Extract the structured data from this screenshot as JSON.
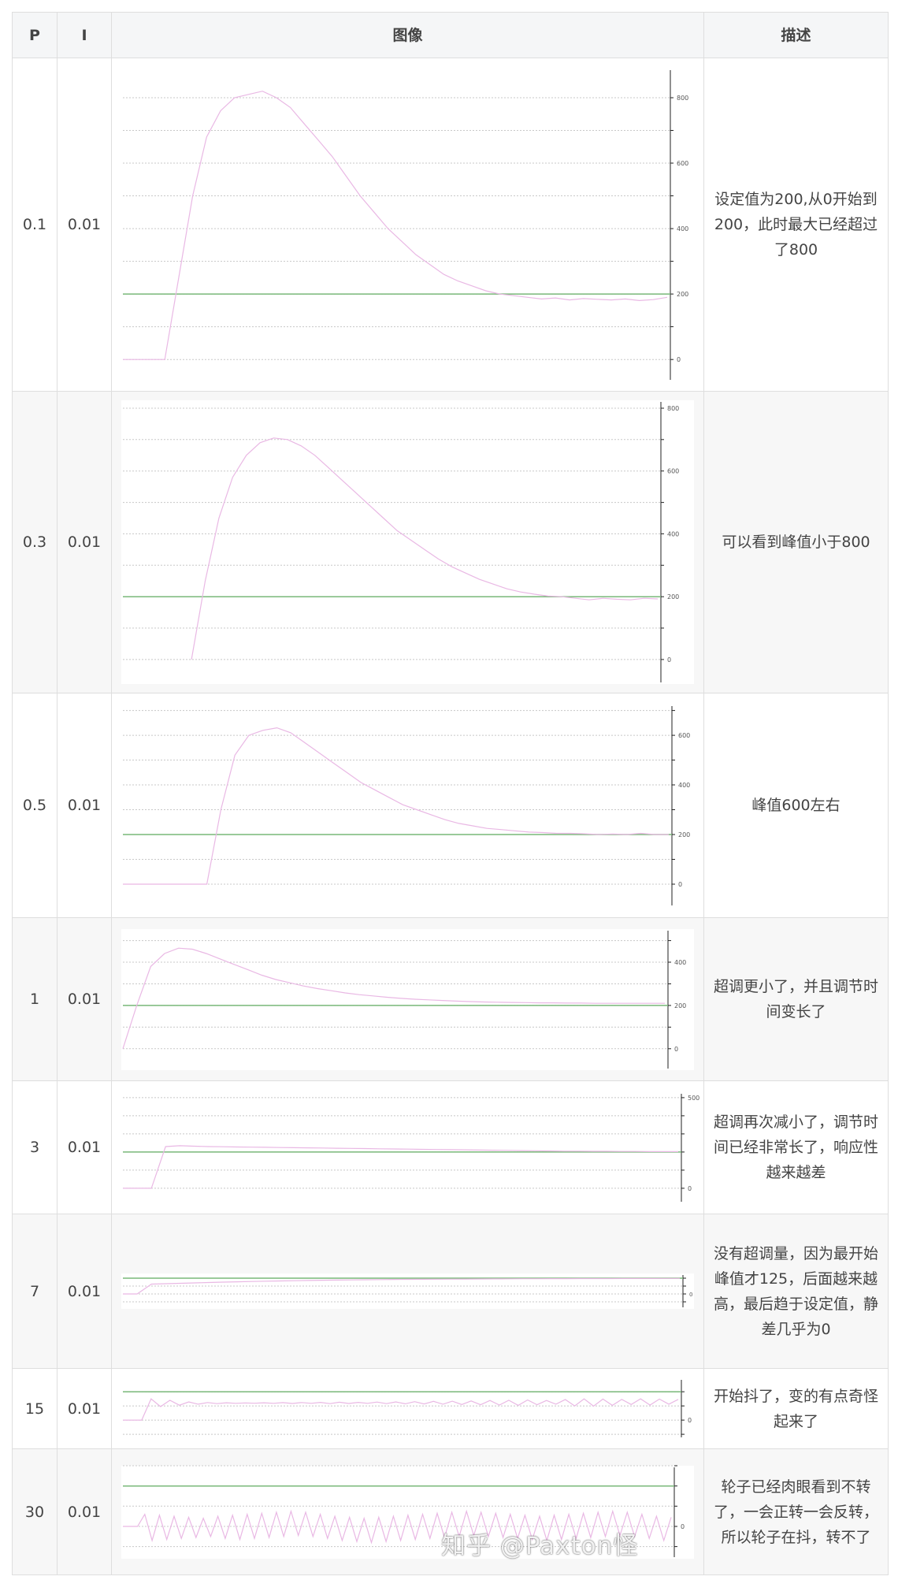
{
  "table": {
    "headers": [
      "P",
      "I",
      "图像",
      "描述"
    ],
    "rows": [
      {
        "p": "0.1",
        "i": "0.01",
        "desc": "设定值为200,从0开始到200，此时最大已经超过了800"
      },
      {
        "p": "0.3",
        "i": "0.01",
        "desc": "可以看到峰值小于800"
      },
      {
        "p": "0.5",
        "i": "0.01",
        "desc": "峰值600左右"
      },
      {
        "p": "1",
        "i": "0.01",
        "desc": "超调更小了，并且调节时间变长了"
      },
      {
        "p": "3",
        "i": "0.01",
        "desc": "超调再次减小了，调节时间已经非常长了，响应性越来越差"
      },
      {
        "p": "7",
        "i": "0.01",
        "desc": "没有超调量，因为最开始峰值才125，后面越来越高，最后趋于设定值，静差几乎为0"
      },
      {
        "p": "15",
        "i": "0.01",
        "desc": "开始抖了，变的有点奇怪起来了"
      },
      {
        "p": "30",
        "i": "0.01",
        "desc": "轮子已经肉眼看到不转了，一会正转一会反转，所以轮子在抖，转不了"
      }
    ]
  },
  "watermark": "知乎 @Paxton怪",
  "colors": {
    "response": "#e9b8e4",
    "setpoint": "#79b879",
    "grid": "#c8c8c8",
    "axis": "#222222",
    "header_bg": "#f5f6f7",
    "alt_row_bg": "#f7f7f7"
  },
  "chart_data": [
    {
      "type": "line",
      "ylim": [
        -67,
        889
      ],
      "ticks": [
        "0",
        "200",
        "400",
        "600",
        "800"
      ],
      "minor_step": 100,
      "setpoint": 200,
      "values": [
        0,
        0,
        0,
        0,
        250,
        500,
        680,
        760,
        800,
        810,
        820,
        800,
        770,
        720,
        670,
        620,
        560,
        500,
        450,
        400,
        360,
        320,
        290,
        260,
        240,
        225,
        210,
        200,
        195,
        190,
        185,
        188,
        182,
        186,
        184,
        182,
        185,
        180,
        183,
        190
      ]
    },
    {
      "type": "line",
      "ylim": [
        -78,
        825
      ],
      "ticks": [
        "0",
        "200",
        "400",
        "600",
        "800"
      ],
      "minor_step": 100,
      "setpoint": 200,
      "values": [
        null,
        null,
        null,
        null,
        null,
        0,
        250,
        450,
        580,
        650,
        690,
        705,
        700,
        680,
        650,
        610,
        570,
        530,
        490,
        450,
        410,
        380,
        350,
        320,
        295,
        275,
        255,
        240,
        225,
        215,
        208,
        202,
        200,
        195,
        190,
        195,
        192,
        190,
        195,
        193
      ]
    },
    {
      "type": "line",
      "ylim": [
        -92,
        724
      ],
      "ticks": [
        "0",
        "200",
        "400",
        "600"
      ],
      "minor_step": 100,
      "setpoint": 200,
      "values": [
        0,
        0,
        0,
        0,
        0,
        0,
        0,
        300,
        520,
        600,
        620,
        630,
        610,
        570,
        530,
        490,
        450,
        410,
        380,
        350,
        320,
        300,
        280,
        260,
        245,
        235,
        225,
        220,
        215,
        210,
        208,
        205,
        205,
        203,
        200,
        202,
        200,
        205,
        200,
        200
      ]
    },
    {
      "type": "line",
      "ylim": [
        -99,
        553
      ],
      "ticks": [
        "0",
        "200",
        "400"
      ],
      "minor_step": 100,
      "setpoint": 200,
      "values": [
        0,
        200,
        380,
        440,
        465,
        460,
        440,
        415,
        390,
        365,
        340,
        320,
        305,
        290,
        278,
        268,
        258,
        250,
        244,
        238,
        233,
        229,
        226,
        223,
        220,
        218,
        216,
        215,
        214,
        213,
        212,
        212,
        211,
        211,
        210,
        210,
        210,
        210,
        210,
        210
      ]
    },
    {
      "type": "line",
      "ylim": [
        -83,
        530
      ],
      "ticks": [
        "0",
        "500"
      ],
      "minor_step": 100,
      "setpoint": 200,
      "values": [
        0,
        0,
        0,
        230,
        235,
        232,
        230,
        229,
        228,
        227,
        226,
        225,
        224,
        223,
        222,
        221,
        220,
        219,
        218,
        217,
        216,
        215,
        214,
        213,
        212,
        211,
        210,
        209,
        208,
        207,
        206,
        205,
        205,
        204,
        204,
        203,
        203,
        202,
        202,
        202
      ]
    },
    {
      "type": "line",
      "ylim": [
        -190,
        260
      ],
      "ticks": [
        "0"
      ],
      "minor_step": 100,
      "setpoint": 200,
      "values": [
        0,
        0,
        125,
        130,
        135,
        140,
        145,
        150,
        154,
        158,
        162,
        165,
        168,
        171,
        174,
        176,
        178,
        180,
        182,
        184,
        185,
        186,
        187,
        188,
        189,
        190,
        191,
        192,
        193,
        193,
        194,
        194,
        195,
        195,
        195,
        196,
        196,
        196,
        197,
        197
      ]
    },
    {
      "type": "line",
      "ylim": [
        -133,
        295
      ],
      "ticks": [
        "0"
      ],
      "minor_step": 100,
      "setpoint": 200,
      "values": [
        0,
        0,
        0,
        150,
        95,
        140,
        105,
        128,
        112,
        124,
        116,
        122,
        118,
        121,
        119,
        122,
        118,
        123,
        117,
        124,
        118,
        125,
        116,
        126,
        117,
        125,
        118,
        127,
        116,
        128,
        115,
        130,
        114,
        132,
        112,
        133,
        110,
        135,
        108,
        138,
        106,
        140,
        104,
        142,
        108,
        138,
        112,
        145,
        100,
        150,
        98,
        148,
        104,
        146,
        110,
        150,
        106,
        148,
        112,
        146
      ]
    },
    {
      "type": "line",
      "ylim": [
        -160,
        300
      ],
      "ticks": [
        "0"
      ],
      "minor_step": 100,
      "setpoint": 200,
      "values": [
        0,
        0,
        0,
        60,
        -70,
        55,
        -65,
        50,
        -60,
        45,
        -55,
        40,
        -50,
        50,
        -60,
        55,
        -65,
        60,
        -60,
        65,
        -55,
        70,
        -50,
        75,
        -45,
        70,
        -50,
        60,
        -60,
        50,
        -70,
        45,
        -75,
        40,
        -80,
        45,
        -75,
        50,
        -70,
        55,
        -65,
        60,
        -60,
        65,
        -55,
        70,
        -50,
        75,
        -45,
        70,
        -50,
        65,
        -55,
        60,
        -60,
        55,
        -65,
        50,
        -70,
        55,
        -65,
        60,
        -60,
        65,
        -55,
        70,
        -50,
        75,
        -45,
        70,
        -50,
        60,
        -60,
        50,
        -70,
        45
      ]
    }
  ]
}
